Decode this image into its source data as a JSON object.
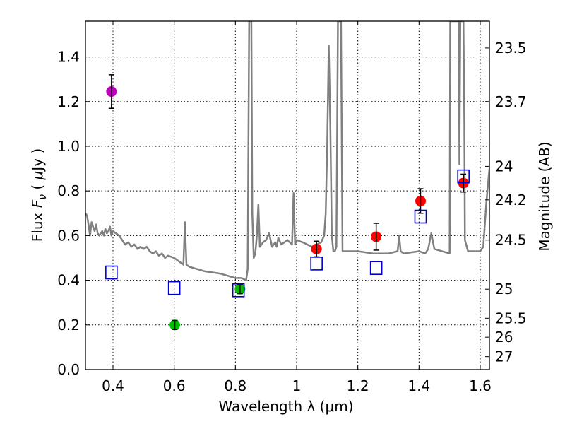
{
  "chart_data": {
    "type": "scatter",
    "title": "",
    "xlabel": "Wavelength  λ (μm)",
    "ylabel": "Flux  F_ν  ( μJy )",
    "ylabel_right": "Magnitude (AB)",
    "xlim": [
      0.31,
      1.63
    ],
    "ylim": [
      0.0,
      1.56
    ],
    "grid": true,
    "x_ticks": [
      0.4,
      0.6,
      0.8,
      1.0,
      1.2,
      1.4,
      1.6
    ],
    "x_tick_labels": [
      "0.4",
      "0.6",
      "0.8",
      "1",
      "1.2",
      "1.4",
      "1.6"
    ],
    "y_ticks": [
      0.0,
      0.2,
      0.4,
      0.6,
      0.8,
      1.0,
      1.2,
      1.4
    ],
    "y_tick_labels": [
      "0.0",
      "0.2",
      "0.4",
      "0.6",
      "0.8",
      "1.0",
      "1.2",
      "1.4"
    ],
    "right_ticks": [
      {
        "label": "23.5",
        "flux": 1.44
      },
      {
        "label": "23.7",
        "flux": 1.2
      },
      {
        "label": "24",
        "flux": 0.91
      },
      {
        "label": "24.2",
        "flux": 0.76
      },
      {
        "label": "24.5",
        "flux": 0.58
      },
      {
        "label": "25",
        "flux": 0.36
      },
      {
        "label": "25.5",
        "flux": 0.23
      },
      {
        "label": "26",
        "flux": 0.145
      },
      {
        "label": "27",
        "flux": 0.058
      }
    ],
    "series": [
      {
        "marker": "circle",
        "color": "#bf00bf",
        "points": [
          {
            "x": 0.395,
            "y": 1.245,
            "err": 0.075
          }
        ]
      },
      {
        "marker": "circle",
        "color": "#00bf00",
        "points": [
          {
            "x": 0.602,
            "y": 0.2,
            "err": 0.02
          },
          {
            "x": 0.815,
            "y": 0.36,
            "err": 0.02
          }
        ]
      },
      {
        "marker": "circle",
        "color": "#ff0000",
        "points": [
          {
            "x": 1.065,
            "y": 0.54,
            "err": 0.035
          },
          {
            "x": 1.26,
            "y": 0.595,
            "err": 0.06
          },
          {
            "x": 1.405,
            "y": 0.755,
            "err": 0.055
          },
          {
            "x": 1.545,
            "y": 0.835,
            "err": 0.04
          }
        ]
      },
      {
        "marker": "open-square",
        "color": "#0000cc",
        "points": [
          {
            "x": 0.395,
            "y": 0.435
          },
          {
            "x": 0.6,
            "y": 0.365
          },
          {
            "x": 0.81,
            "y": 0.355
          },
          {
            "x": 1.065,
            "y": 0.475
          },
          {
            "x": 1.26,
            "y": 0.455
          },
          {
            "x": 1.405,
            "y": 0.685
          },
          {
            "x": 1.545,
            "y": 0.865
          }
        ]
      }
    ],
    "spectrum": {
      "color": "#808080",
      "x": [
        0.31,
        0.315,
        0.32,
        0.325,
        0.33,
        0.335,
        0.34,
        0.345,
        0.35,
        0.355,
        0.36,
        0.365,
        0.37,
        0.375,
        0.38,
        0.385,
        0.39,
        0.395,
        0.4,
        0.41,
        0.42,
        0.43,
        0.44,
        0.45,
        0.46,
        0.47,
        0.48,
        0.49,
        0.5,
        0.51,
        0.52,
        0.53,
        0.54,
        0.55,
        0.56,
        0.57,
        0.58,
        0.6,
        0.62,
        0.63,
        0.635,
        0.64,
        0.65,
        0.7,
        0.75,
        0.8,
        0.82,
        0.835,
        0.84,
        0.845,
        0.848,
        0.85,
        0.852,
        0.855,
        0.86,
        0.865,
        0.87,
        0.875,
        0.88,
        0.89,
        0.9,
        0.91,
        0.92,
        0.93,
        0.935,
        0.94,
        0.95,
        0.97,
        0.985,
        0.99,
        0.995,
        1.0,
        1.02,
        1.05,
        1.08,
        1.09,
        1.095,
        1.1,
        1.105,
        1.11,
        1.115,
        1.12,
        1.125,
        1.13,
        1.135,
        1.138,
        1.142,
        1.145,
        1.15,
        1.18,
        1.2,
        1.25,
        1.3,
        1.33,
        1.335,
        1.34,
        1.35,
        1.4,
        1.42,
        1.43,
        1.44,
        1.45,
        1.5,
        1.502,
        1.504,
        1.51,
        1.52,
        1.53,
        1.532,
        1.535,
        1.54,
        1.545,
        1.548,
        1.55,
        1.56,
        1.58,
        1.6,
        1.61,
        1.62,
        1.63
      ],
      "y": [
        0.7,
        0.69,
        0.65,
        0.6,
        0.66,
        0.64,
        0.62,
        0.65,
        0.61,
        0.6,
        0.61,
        0.62,
        0.6,
        0.63,
        0.61,
        0.62,
        0.64,
        0.6,
        0.62,
        0.61,
        0.6,
        0.58,
        0.56,
        0.57,
        0.55,
        0.56,
        0.54,
        0.55,
        0.54,
        0.55,
        0.53,
        0.52,
        0.53,
        0.51,
        0.52,
        0.5,
        0.51,
        0.5,
        0.48,
        0.47,
        0.66,
        0.47,
        0.46,
        0.44,
        0.43,
        0.41,
        0.41,
        0.4,
        0.45,
        1.56,
        1.56,
        1.56,
        1.56,
        0.7,
        0.5,
        0.52,
        0.6,
        0.74,
        0.55,
        0.57,
        0.58,
        0.61,
        0.55,
        0.57,
        0.55,
        0.59,
        0.56,
        0.58,
        0.56,
        0.79,
        0.56,
        0.58,
        0.57,
        0.55,
        0.57,
        0.6,
        0.7,
        1.0,
        1.45,
        1.1,
        0.6,
        0.53,
        0.53,
        0.55,
        1.56,
        1.56,
        1.56,
        1.56,
        0.53,
        0.53,
        0.53,
        0.52,
        0.52,
        0.53,
        0.6,
        0.53,
        0.52,
        0.53,
        0.52,
        0.54,
        0.61,
        0.54,
        0.52,
        1.56,
        1.56,
        1.56,
        1.56,
        1.56,
        0.92,
        1.56,
        1.56,
        1.56,
        1.1,
        0.58,
        0.53,
        0.53,
        0.53,
        0.55,
        0.75,
        0.9
      ]
    }
  }
}
